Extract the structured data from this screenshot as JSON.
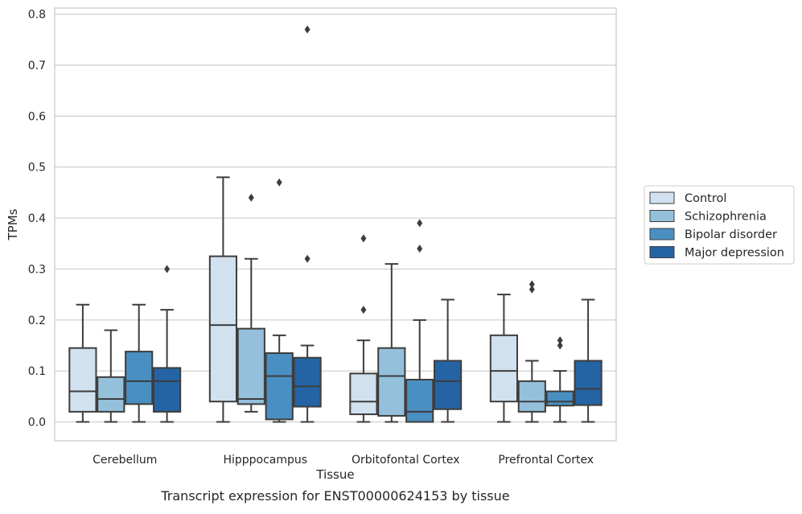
{
  "chart_data": {
    "type": "box",
    "xlabel": "Tissue",
    "ylabel": "TPMs",
    "caption": "Transcript expression for ENST00000624153 by tissue",
    "ylim": [
      -0.037,
      0.812
    ],
    "yticks": [
      "0.0",
      "0.1",
      "0.2",
      "0.3",
      "0.4",
      "0.5",
      "0.6",
      "0.7",
      "0.8"
    ],
    "grid": "horizontal",
    "legend_position": "outside-right",
    "categories": [
      "Cerebellum",
      "Hipppocampus",
      "Orbitofontal Cortex",
      "Prefrontal Cortex"
    ],
    "series": [
      {
        "name": "Control",
        "color": "#d1e1f0",
        "boxes": [
          {
            "whislo": 0.0,
            "q1": 0.02,
            "med": 0.06,
            "q3": 0.145,
            "whishi": 0.23,
            "fliers": []
          },
          {
            "whislo": 0.0,
            "q1": 0.04,
            "med": 0.19,
            "q3": 0.325,
            "whishi": 0.48,
            "fliers": []
          },
          {
            "whislo": 0.0,
            "q1": 0.015,
            "med": 0.04,
            "q3": 0.095,
            "whishi": 0.16,
            "fliers": [
              0.22,
              0.36
            ]
          },
          {
            "whislo": 0.0,
            "q1": 0.04,
            "med": 0.1,
            "q3": 0.17,
            "whishi": 0.25,
            "fliers": []
          }
        ]
      },
      {
        "name": "Schizophrenia",
        "color": "#94c0dc",
        "boxes": [
          {
            "whislo": 0.0,
            "q1": 0.02,
            "med": 0.045,
            "q3": 0.088,
            "whishi": 0.18,
            "fliers": []
          },
          {
            "whislo": 0.02,
            "q1": 0.035,
            "med": 0.045,
            "q3": 0.183,
            "whishi": 0.32,
            "fliers": [
              0.44
            ]
          },
          {
            "whislo": 0.0,
            "q1": 0.012,
            "med": 0.09,
            "q3": 0.145,
            "whishi": 0.31,
            "fliers": []
          },
          {
            "whislo": 0.0,
            "q1": 0.02,
            "med": 0.04,
            "q3": 0.08,
            "whishi": 0.12,
            "fliers": [
              0.26,
              0.27
            ]
          }
        ]
      },
      {
        "name": "Bipolar disorder",
        "color": "#4a8fc2",
        "boxes": [
          {
            "whislo": 0.0,
            "q1": 0.035,
            "med": 0.08,
            "q3": 0.138,
            "whishi": 0.23,
            "fliers": []
          },
          {
            "whislo": 0.0,
            "q1": 0.005,
            "med": 0.09,
            "q3": 0.135,
            "whishi": 0.17,
            "fliers": [
              0.47
            ]
          },
          {
            "whislo": 0.0,
            "q1": 0.0,
            "med": 0.02,
            "q3": 0.083,
            "whishi": 0.2,
            "fliers": [
              0.34,
              0.39
            ]
          },
          {
            "whislo": 0.0,
            "q1": 0.032,
            "med": 0.04,
            "q3": 0.06,
            "whishi": 0.1,
            "fliers": [
              0.15,
              0.16
            ]
          }
        ]
      },
      {
        "name": "Major depression",
        "color": "#2464a4",
        "boxes": [
          {
            "whislo": 0.0,
            "q1": 0.02,
            "med": 0.08,
            "q3": 0.106,
            "whishi": 0.22,
            "fliers": [
              0.3
            ]
          },
          {
            "whislo": 0.0,
            "q1": 0.03,
            "med": 0.07,
            "q3": 0.126,
            "whishi": 0.15,
            "fliers": [
              0.32,
              0.77
            ]
          },
          {
            "whislo": 0.0,
            "q1": 0.025,
            "med": 0.08,
            "q3": 0.12,
            "whishi": 0.24,
            "fliers": []
          },
          {
            "whislo": 0.0,
            "q1": 0.033,
            "med": 0.065,
            "q3": 0.12,
            "whishi": 0.24,
            "fliers": []
          }
        ]
      }
    ]
  }
}
